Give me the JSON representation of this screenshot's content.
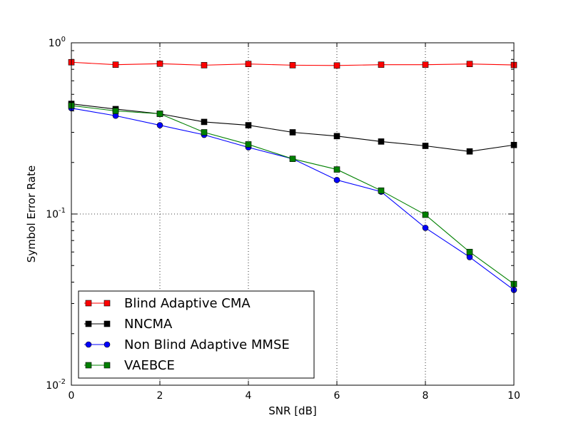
{
  "chart_data": {
    "type": "line",
    "xlabel": "SNR [dB]",
    "ylabel": "Symbol Error Rate",
    "xlim": [
      0,
      10
    ],
    "ylim": [
      0.01,
      1
    ],
    "yscale": "log",
    "grid": true,
    "legend_position": "lower-left",
    "x_ticks": [
      0,
      2,
      4,
      6,
      8,
      10
    ],
    "y_ticks": [
      {
        "value": 0.01,
        "base": "10",
        "exp": "-2"
      },
      {
        "value": 0.1,
        "base": "10",
        "exp": "-1"
      },
      {
        "value": 1,
        "base": "10",
        "exp": "0"
      }
    ],
    "x": [
      0,
      1,
      2,
      3,
      4,
      5,
      6,
      7,
      8,
      9,
      10
    ],
    "series": [
      {
        "name": "Blind Adaptive CMA",
        "color": "#ff0000",
        "marker": "square",
        "values": [
          0.77,
          0.745,
          0.755,
          0.74,
          0.752,
          0.74,
          0.737,
          0.745,
          0.745,
          0.752,
          0.742
        ]
      },
      {
        "name": "NNCMA",
        "color": "#000000",
        "marker": "square",
        "values": [
          0.44,
          0.41,
          0.385,
          0.345,
          0.33,
          0.3,
          0.285,
          0.265,
          0.25,
          0.232,
          0.253
        ]
      },
      {
        "name": "Non Blind Adaptive MMSE",
        "color": "#0000ff",
        "marker": "circle",
        "values": [
          0.415,
          0.375,
          0.33,
          0.29,
          0.245,
          0.21,
          0.158,
          0.135,
          0.083,
          0.056,
          0.036
        ]
      },
      {
        "name": "VAEBCE",
        "color": "#008000",
        "marker": "square",
        "values": [
          0.43,
          0.4,
          0.385,
          0.3,
          0.255,
          0.21,
          0.182,
          0.137,
          0.099,
          0.06,
          0.039
        ]
      }
    ]
  }
}
